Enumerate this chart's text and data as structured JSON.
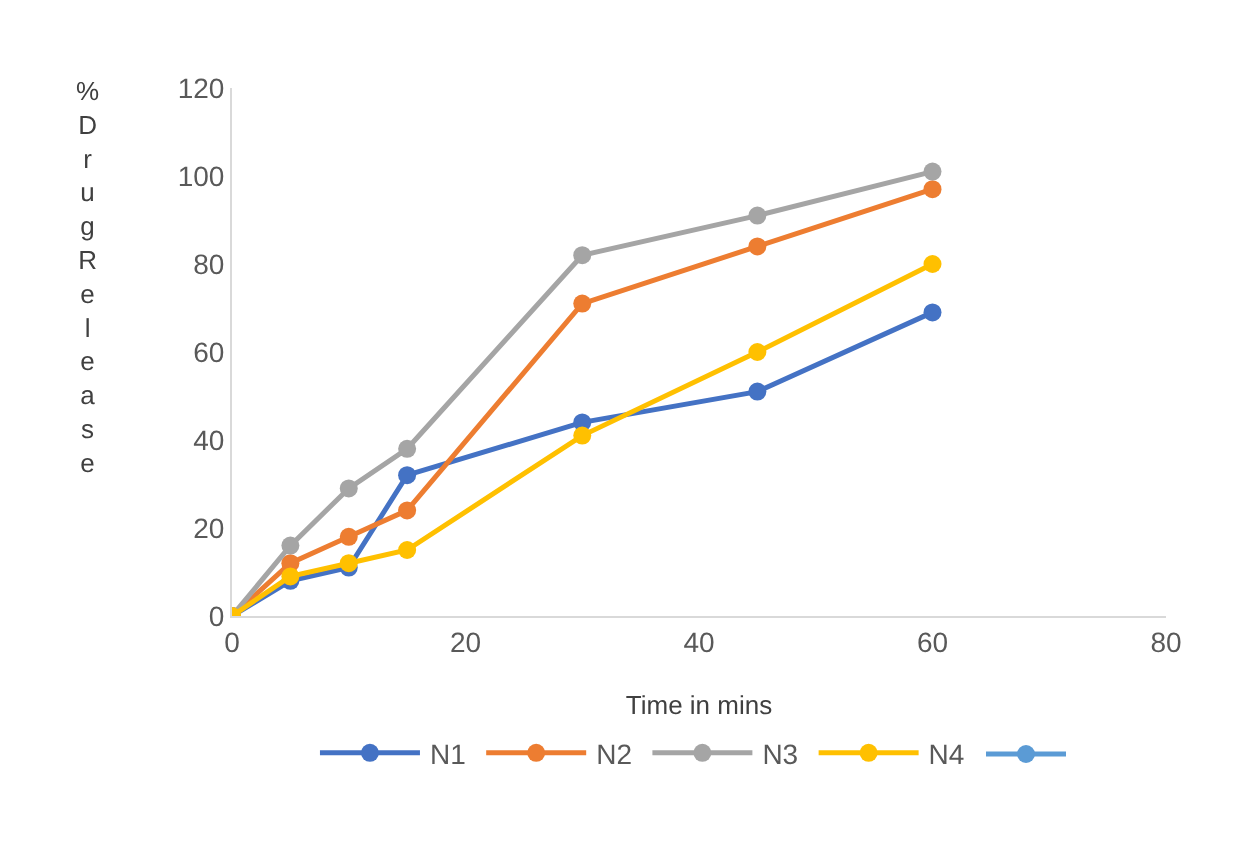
{
  "chart_data": {
    "type": "line",
    "xlabel": "Time in mins",
    "ylabel": "% Drug Release",
    "x": [
      0,
      5,
      10,
      15,
      30,
      45,
      60
    ],
    "series": [
      {
        "name": "N1",
        "color": "#4472c4",
        "values": [
          0,
          8,
          11,
          32,
          44,
          51,
          69
        ]
      },
      {
        "name": "N2",
        "color": "#ed7d31",
        "values": [
          0,
          12,
          18,
          24,
          71,
          84,
          97
        ]
      },
      {
        "name": "N3",
        "color": "#a5a5a5",
        "values": [
          0,
          16,
          29,
          38,
          82,
          91,
          101
        ]
      },
      {
        "name": "N4",
        "color": "#ffc000",
        "values": [
          0,
          9,
          12,
          15,
          41,
          60,
          80
        ]
      }
    ],
    "xlim": [
      0,
      80
    ],
    "xticks": [
      0,
      20,
      40,
      60,
      80
    ],
    "ylim": [
      0,
      120
    ],
    "yticks": [
      0,
      20,
      40,
      60,
      80,
      100,
      120
    ],
    "grid": false,
    "legend": "bottom",
    "marker": "circle",
    "line_style": "solid"
  }
}
